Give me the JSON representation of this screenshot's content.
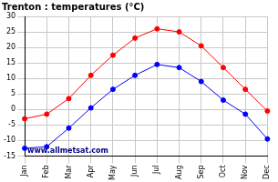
{
  "chart_data": {
    "type": "line",
    "title": "Trenton : temperatures (°C)",
    "categories": [
      "Jan",
      "Feb",
      "Mar",
      "Apr",
      "May",
      "Jun",
      "Jul",
      "Aug",
      "Sep",
      "Oct",
      "Nov",
      "Dec"
    ],
    "series": [
      {
        "color": "#ff0000",
        "marker": "circle",
        "values": [
          -3,
          -1.5,
          3.5,
          11,
          17.5,
          23,
          26,
          25,
          20.5,
          13.5,
          6.5,
          -0.5
        ]
      },
      {
        "color": "#0000ff",
        "marker": "circle",
        "values": [
          -12.5,
          -12,
          -6,
          0.5,
          6.5,
          11,
          14.5,
          13.5,
          9,
          3,
          -1.5,
          -9.5
        ]
      }
    ],
    "ylim": [
      -15,
      30
    ],
    "yticks": [
      -15,
      -10,
      -5,
      0,
      5,
      10,
      15,
      20,
      25,
      30
    ],
    "grid": true,
    "annotations": [
      "www.allmetsat.com"
    ]
  }
}
